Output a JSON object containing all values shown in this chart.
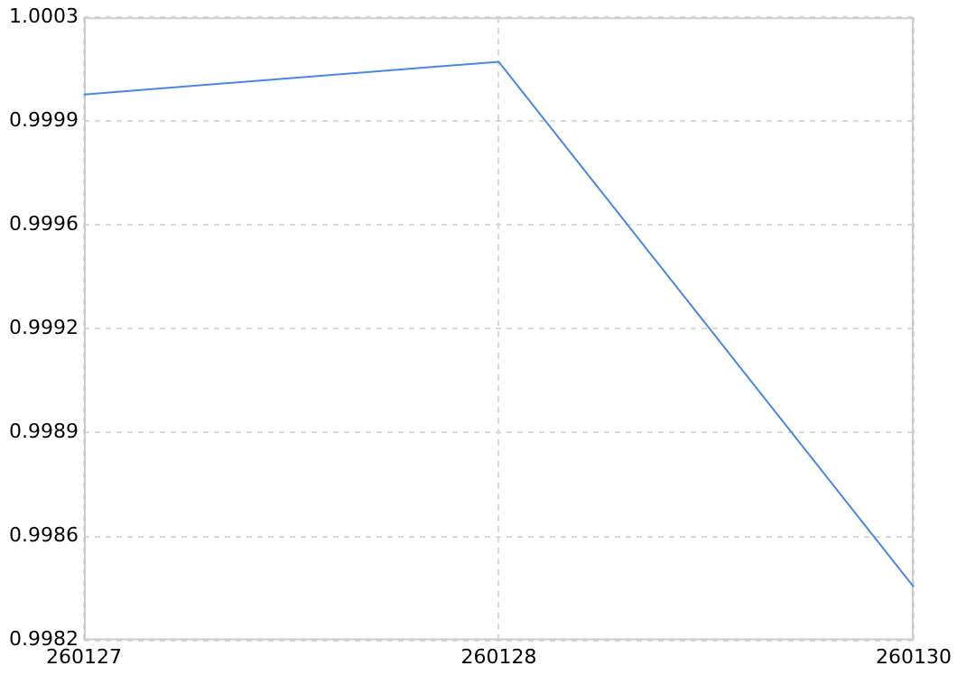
{
  "chart_data": {
    "type": "line",
    "categories": [
      "260127",
      "260128",
      "260130"
    ],
    "series": [
      {
        "color": "#4a86e8",
        "values": [
          1.00004,
          1.00015,
          0.99838
        ]
      }
    ],
    "ylim": [
      0.9982,
      1.0003
    ],
    "yticks": [
      {
        "value": 0.9982,
        "label": "0.9982"
      },
      {
        "value": 0.99855,
        "label": "0.9986"
      },
      {
        "value": 0.9989,
        "label": "0.9989"
      },
      {
        "value": 0.99925,
        "label": "0.9992"
      },
      {
        "value": 0.9996,
        "label": "0.9996"
      },
      {
        "value": 0.99995,
        "label": "0.9999"
      },
      {
        "value": 1.0003,
        "label": "1.0003"
      }
    ],
    "grid": true,
    "legend": false,
    "marker": "none",
    "line_style": "solid"
  }
}
